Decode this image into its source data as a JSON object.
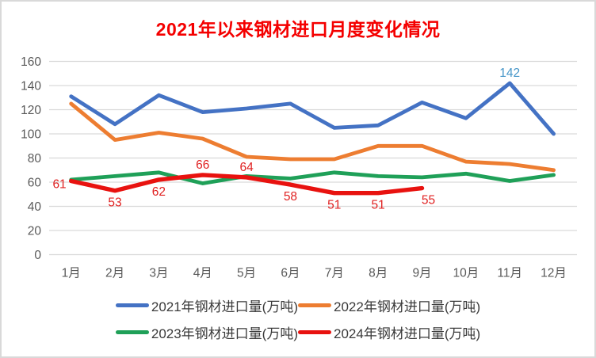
{
  "chart_data": {
    "type": "line",
    "title": "2021年以来钢材进口月度变化情况",
    "xlabel": "",
    "ylabel": "",
    "ylim": [
      0,
      160
    ],
    "y_ticks": [
      0,
      20,
      40,
      60,
      80,
      100,
      120,
      140,
      160
    ],
    "grid": true,
    "legend_position": "bottom",
    "categories": [
      "1月",
      "2月",
      "3月",
      "4月",
      "5月",
      "6月",
      "7月",
      "8月",
      "9月",
      "10月",
      "11月",
      "12月"
    ],
    "series": [
      {
        "key": "2021",
        "name": "2021年钢材进口量(万吨)",
        "color": "#4472C4",
        "label_color": "#4696C8",
        "values": [
          131,
          108,
          132,
          118,
          121,
          125,
          105,
          107,
          126,
          113,
          142,
          100
        ],
        "point_labels": [
          {
            "index": 10,
            "pos": "above"
          }
        ]
      },
      {
        "key": "2022",
        "name": "2022年钢材进口量(万吨)",
        "color": "#ED7D31",
        "label_color": "#ED7D31",
        "values": [
          125,
          95,
          101,
          96,
          81,
          79,
          79,
          90,
          90,
          77,
          75,
          70
        ],
        "point_labels": []
      },
      {
        "key": "2023",
        "name": "2023年钢材进口量(万吨)",
        "color": "#1FA058",
        "label_color": "#1FA058",
        "values": [
          62,
          65,
          68,
          59,
          65,
          63,
          68,
          65,
          64,
          67,
          61,
          66
        ],
        "point_labels": []
      },
      {
        "key": "2024",
        "name": "2024年钢材进口量(万吨)",
        "color": "#E8120F",
        "label_color": "#E02020",
        "values": [
          61,
          53,
          62,
          66,
          64,
          58,
          51,
          51,
          55
        ],
        "point_labels": [
          {
            "index": 0,
            "pos": "left"
          },
          {
            "index": 1,
            "pos": "below"
          },
          {
            "index": 2,
            "pos": "below"
          },
          {
            "index": 3,
            "pos": "above"
          },
          {
            "index": 4,
            "pos": "above"
          },
          {
            "index": 5,
            "pos": "below"
          },
          {
            "index": 6,
            "pos": "below"
          },
          {
            "index": 7,
            "pos": "below"
          },
          {
            "index": 8,
            "pos": "below-right"
          }
        ]
      }
    ]
  },
  "colors": {
    "title": "#F40000",
    "axis_text": "#595959",
    "legend_text": "#3A3A3A",
    "gridline": "#D9D9D9",
    "frame_border": "#D9D9D9",
    "background": "#FFFFFF"
  }
}
